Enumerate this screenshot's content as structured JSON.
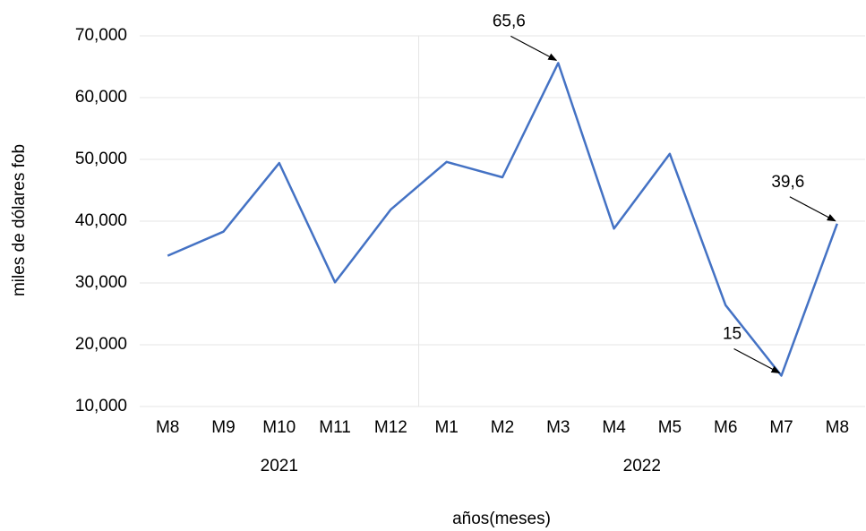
{
  "chart_data": {
    "type": "line",
    "categories": [
      "M8",
      "M9",
      "M10",
      "M11",
      "M12",
      "M1",
      "M2",
      "M3",
      "M4",
      "M5",
      "M6",
      "M7",
      "M8"
    ],
    "groups": [
      {
        "label": "2021",
        "size": 5
      },
      {
        "label": "2022",
        "size": 8
      }
    ],
    "series": [
      {
        "name": "miles de dólares fob",
        "color": "#4472c4",
        "values": [
          34400,
          38300,
          49400,
          30100,
          41900,
          49600,
          47100,
          65600,
          38800,
          50900,
          26400,
          15000,
          39600
        ],
        "value_labels": [
          null,
          null,
          null,
          null,
          null,
          null,
          null,
          "65,6",
          null,
          null,
          null,
          "15",
          "39,6"
        ]
      }
    ],
    "ylim": [
      10000,
      70000
    ],
    "yticks": [
      {
        "value": 10000,
        "label": "10,000"
      },
      {
        "value": 20000,
        "label": "20,000"
      },
      {
        "value": 30000,
        "label": "30,000"
      },
      {
        "value": 40000,
        "label": "40,000"
      },
      {
        "value": 50000,
        "label": "50,000"
      },
      {
        "value": 60000,
        "label": "60,000"
      },
      {
        "value": 70000,
        "label": "70,000"
      }
    ],
    "y_label": "miles de dólares fob",
    "x_label": "años(meses)",
    "grid": true
  }
}
